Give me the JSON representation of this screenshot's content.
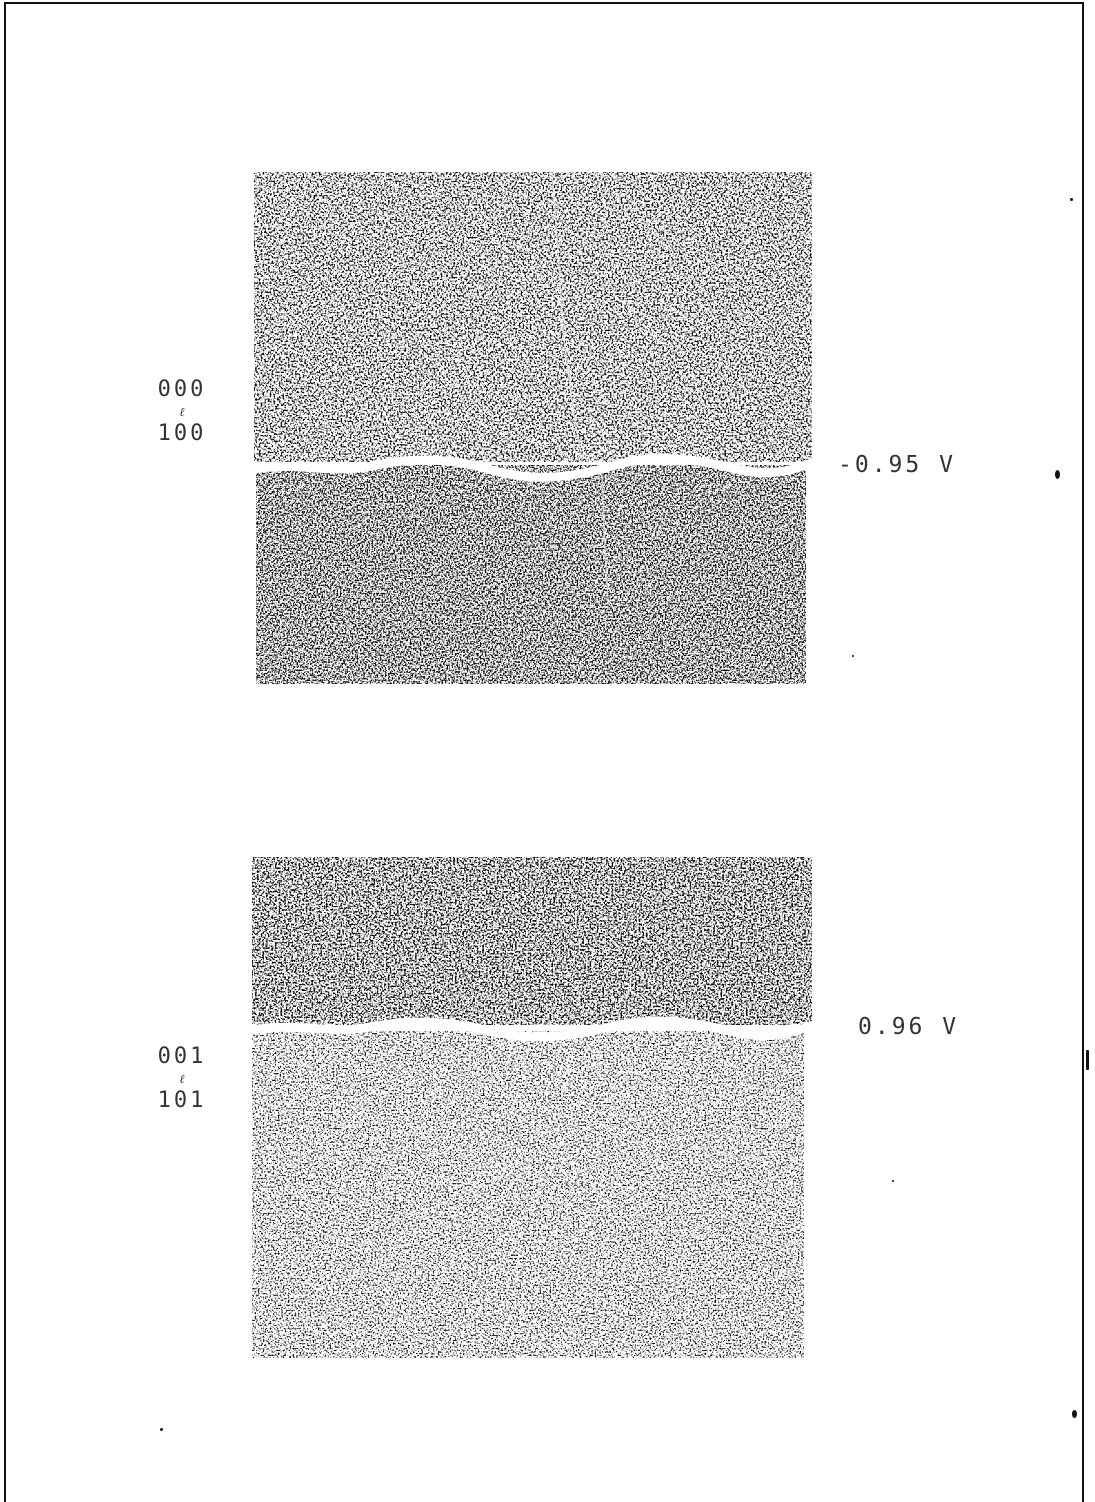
{
  "figures": [
    {
      "orientation_top": "000",
      "orientation_mid": "ℓ",
      "orientation_bottom": "100",
      "potential": "-0.95 V"
    },
    {
      "orientation_top": "001",
      "orientation_mid": "ℓ",
      "orientation_bottom": "101",
      "potential": "0.96 V"
    }
  ]
}
